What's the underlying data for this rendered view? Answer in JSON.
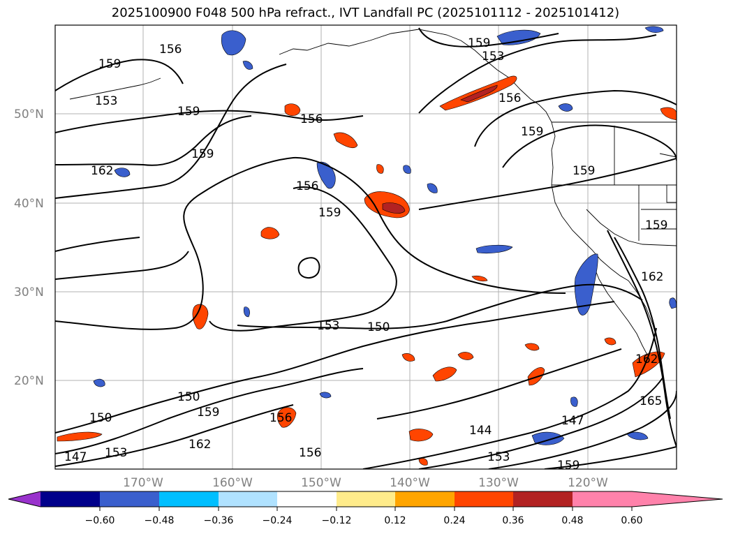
{
  "title": "2025100900 F048 500 hPa refract., IVT Landfall PC (2025101112 - 2025101412)",
  "map": {
    "lat_labels": [
      "50°N",
      "40°N",
      "30°N",
      "20°N"
    ],
    "lon_labels": [
      "170°W",
      "160°W",
      "150°W",
      "140°W",
      "130°W",
      "120°W"
    ],
    "contour_labels": [
      "159",
      "156",
      "153",
      "159",
      "159",
      "162",
      "156",
      "159",
      "156",
      "159",
      "153",
      "159",
      "156",
      "159",
      "153",
      "150",
      "150",
      "159",
      "162",
      "150",
      "153",
      "147",
      "156",
      "156",
      "144",
      "147",
      "153",
      "159",
      "159",
      "162",
      "165",
      "162"
    ]
  },
  "colorbar": {
    "ticks": [
      "−0.60",
      "−0.48",
      "−0.36",
      "−0.24",
      "−0.12",
      "0.12",
      "0.24",
      "0.36",
      "0.48",
      "0.60"
    ],
    "colors": [
      "#9932cc",
      "#00008b",
      "#3a5fcd",
      "#00bfff",
      "#b0e2ff",
      "#ffffff",
      "#ffec8b",
      "#ffa500",
      "#ff4500",
      "#b22222",
      "#ff82ab"
    ]
  }
}
